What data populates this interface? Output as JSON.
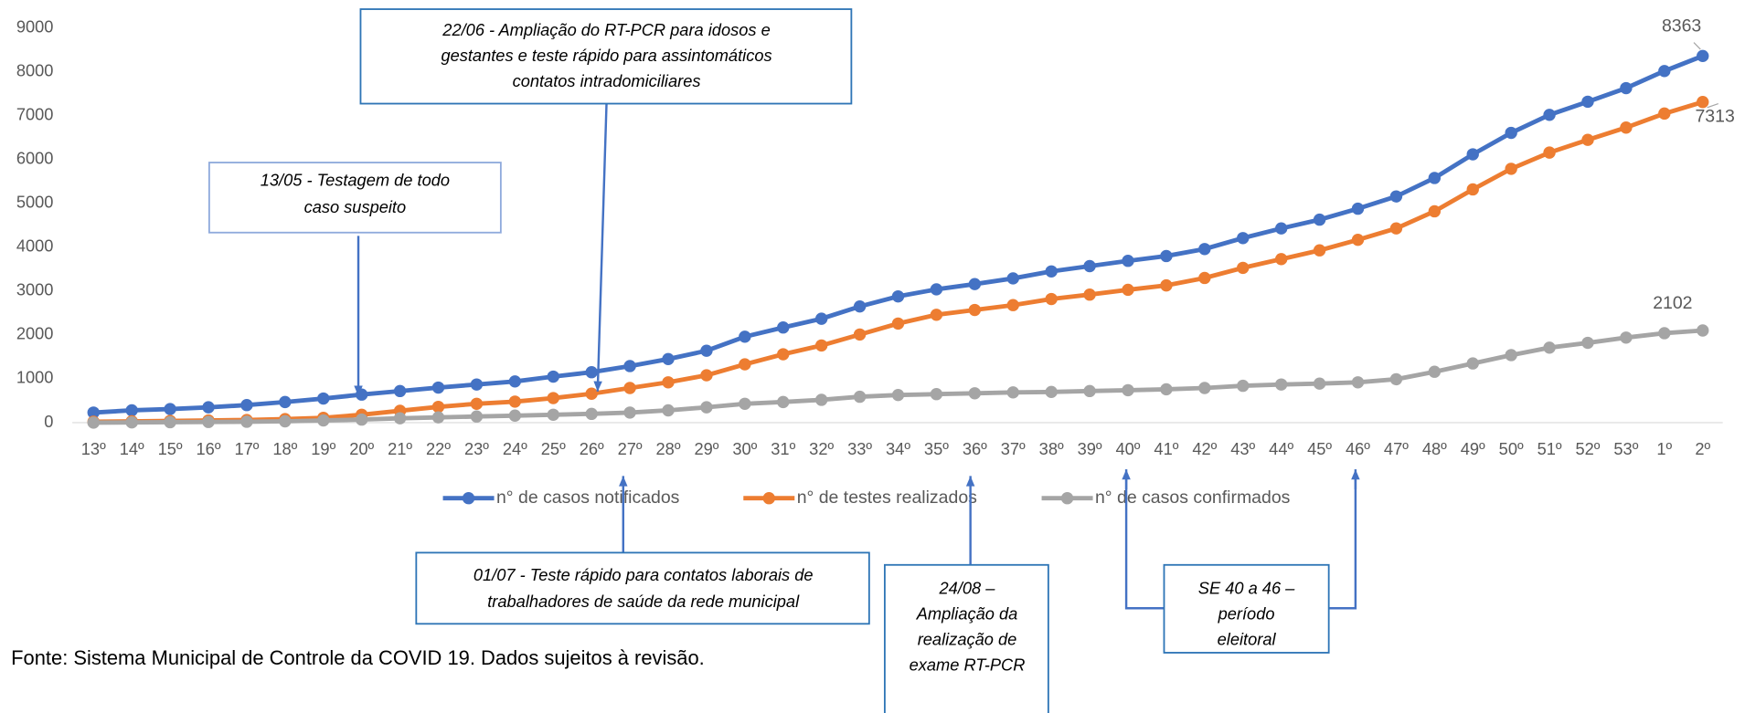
{
  "chart_data": {
    "type": "line",
    "categories": [
      "13º",
      "14º",
      "15º",
      "16º",
      "17º",
      "18º",
      "19º",
      "20º",
      "21º",
      "22º",
      "23º",
      "24º",
      "25º",
      "26º",
      "27º",
      "28º",
      "29º",
      "30º",
      "31º",
      "32º",
      "33º",
      "34º",
      "35º",
      "36º",
      "37º",
      "38º",
      "39º",
      "40º",
      "41º",
      "42º",
      "43º",
      "44º",
      "45º",
      "46º",
      "47º",
      "48º",
      "49º",
      "50º",
      "51º",
      "52º",
      "53º",
      "1º",
      "2º"
    ],
    "series": [
      {
        "name": "n° de casos notificados",
        "color": "#4472C4",
        "values": [
          230,
          280,
          310,
          350,
          400,
          470,
          550,
          640,
          720,
          800,
          870,
          940,
          1050,
          1150,
          1290,
          1450,
          1640,
          1960,
          2170,
          2370,
          2650,
          2880,
          3040,
          3160,
          3290,
          3450,
          3570,
          3690,
          3800,
          3960,
          4210,
          4430,
          4630,
          4880,
          5160,
          5580,
          6120,
          6610,
          7020,
          7320,
          7630,
          8020,
          8363
        ]
      },
      {
        "name": "n° de testes realizados",
        "color": "#ED7D31",
        "values": [
          20,
          30,
          40,
          50,
          60,
          80,
          110,
          180,
          270,
          360,
          430,
          480,
          560,
          660,
          790,
          920,
          1080,
          1330,
          1560,
          1760,
          2010,
          2260,
          2460,
          2570,
          2680,
          2820,
          2920,
          3030,
          3130,
          3300,
          3530,
          3730,
          3930,
          4170,
          4430,
          4820,
          5320,
          5790,
          6160,
          6450,
          6730,
          7050,
          7313
        ]
      },
      {
        "name": "n° de casos confirmados",
        "color": "#A5A5A5",
        "values": [
          0,
          5,
          10,
          15,
          20,
          30,
          50,
          70,
          100,
          120,
          140,
          160,
          180,
          200,
          230,
          280,
          350,
          430,
          470,
          520,
          590,
          630,
          650,
          670,
          690,
          700,
          720,
          740,
          760,
          790,
          840,
          870,
          890,
          920,
          990,
          1160,
          1350,
          1540,
          1710,
          1820,
          1940,
          2040,
          2102
        ]
      }
    ],
    "ylim": [
      0,
      9000
    ],
    "yticks": [
      0,
      1000,
      2000,
      3000,
      4000,
      5000,
      6000,
      7000,
      8000,
      9000
    ],
    "grid": false,
    "legend": "bottom",
    "annotations": [
      {
        "lines": [
          "22/06 - Ampliação do RT-PCR para idosos e",
          "gestantes e teste rápido para assintomáticos",
          "contatos intradomiciliares"
        ]
      },
      {
        "lines": [
          "13/05 - Testagem de todo",
          "caso suspeito"
        ]
      },
      {
        "lines": [
          "01/07 - Teste rápido para contatos laborais de",
          "trabalhadores de saúde da rede municipal"
        ]
      },
      {
        "lines": [
          "24/08 –",
          "Ampliação da",
          "realização de",
          "exame RT-PCR"
        ]
      },
      {
        "lines": [
          "SE 40 a 46 –",
          "período",
          "eleitoral"
        ]
      }
    ],
    "source": "Fonte: Sistema Municipal de Controle da COVID 19. Dados sujeitos à revisão."
  }
}
